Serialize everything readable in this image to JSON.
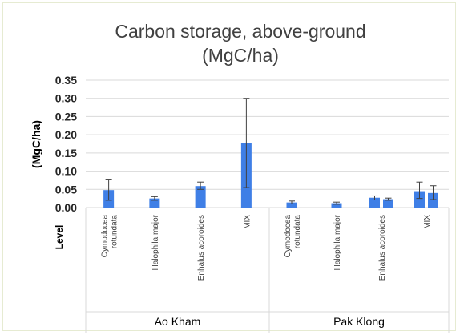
{
  "chart_data": {
    "type": "bar",
    "title": "Carbon storage, above-ground",
    "subtitle": "(MgC/ha)",
    "ylabel": "(MgC/ha)",
    "row_label": "Level",
    "ylim": [
      0,
      0.35
    ],
    "yticks": [
      "0.00",
      "0.05",
      "0.10",
      "0.15",
      "0.20",
      "0.25",
      "0.30",
      "0.35"
    ],
    "grid": true,
    "bar_color": "#3f7fe6",
    "groups": [
      {
        "name": "Ao Kham",
        "categories": [
          {
            "label": [
              "Cymodocea",
              "rotundata"
            ],
            "bars": [
              {
                "value": 0.048,
                "err_low": 0.02,
                "err_high": 0.078
              }
            ]
          },
          {
            "label": [
              "Halophila major"
            ],
            "bars": [
              {
                "value": 0.025,
                "err_low": 0.02,
                "err_high": 0.03
              }
            ]
          },
          {
            "label": [
              "Enhalus acoroides"
            ],
            "bars": [
              {
                "value": 0.059,
                "err_low": 0.05,
                "err_high": 0.07
              }
            ]
          },
          {
            "label": [
              "MIX"
            ],
            "bars": [
              {
                "value": 0.178,
                "err_low": 0.055,
                "err_high": 0.3
              }
            ]
          }
        ]
      },
      {
        "name": "Pak Klong",
        "categories": [
          {
            "label": [
              "Cymodocea",
              "rotundata"
            ],
            "bars": [
              {
                "value": 0.014,
                "err_low": 0.01,
                "err_high": 0.018
              }
            ]
          },
          {
            "label": [
              "Halophila major"
            ],
            "bars": [
              {
                "value": 0.012,
                "err_low": 0.009,
                "err_high": 0.015
              }
            ]
          },
          {
            "label": [
              "Enhalus acoroides"
            ],
            "bars": [
              {
                "value": 0.027,
                "err_low": 0.021,
                "err_high": 0.032
              },
              {
                "value": 0.023,
                "err_low": 0.02,
                "err_high": 0.026
              }
            ]
          },
          {
            "label": [
              "MIX"
            ],
            "bars": [
              {
                "value": 0.045,
                "err_low": 0.025,
                "err_high": 0.07
              },
              {
                "value": 0.04,
                "err_low": 0.022,
                "err_high": 0.06
              }
            ]
          }
        ]
      }
    ]
  }
}
